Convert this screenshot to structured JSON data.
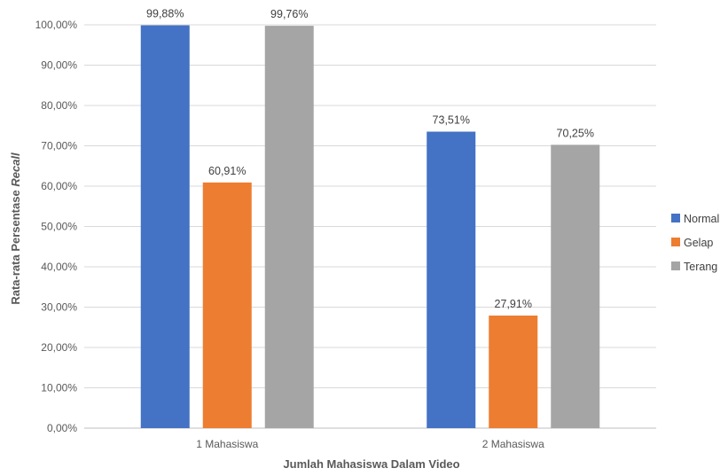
{
  "chart_data": {
    "type": "bar",
    "categories": [
      "1 Mahasiswa",
      "2 Mahasiswa"
    ],
    "series": [
      {
        "name": "Normal",
        "values": [
          99.88,
          73.51
        ],
        "labels": [
          "99,88%",
          "73,51%"
        ],
        "color": "#4472c4"
      },
      {
        "name": "Gelap",
        "values": [
          60.91,
          27.91
        ],
        "labels": [
          "60,91%",
          "27,91%"
        ],
        "color": "#ed7d31"
      },
      {
        "name": "Terang",
        "values": [
          99.76,
          70.25
        ],
        "labels": [
          "99,76%",
          "70,25%"
        ],
        "color": "#a5a5a5"
      }
    ],
    "ylim": [
      0,
      100
    ],
    "yticks": [
      0,
      10,
      20,
      30,
      40,
      50,
      60,
      70,
      80,
      90,
      100
    ],
    "ytick_labels": [
      "0,00%",
      "10,00%",
      "20,00%",
      "30,00%",
      "40,00%",
      "50,00%",
      "60,00%",
      "70,00%",
      "80,00%",
      "90,00%",
      "100,00%"
    ],
    "xlabel": "Jumlah Mahasiswa Dalam Video",
    "ylabel_plain": "Rata-rata Persentase ",
    "ylabel_italic": "Recall",
    "grid": true,
    "legend_position": "right"
  }
}
